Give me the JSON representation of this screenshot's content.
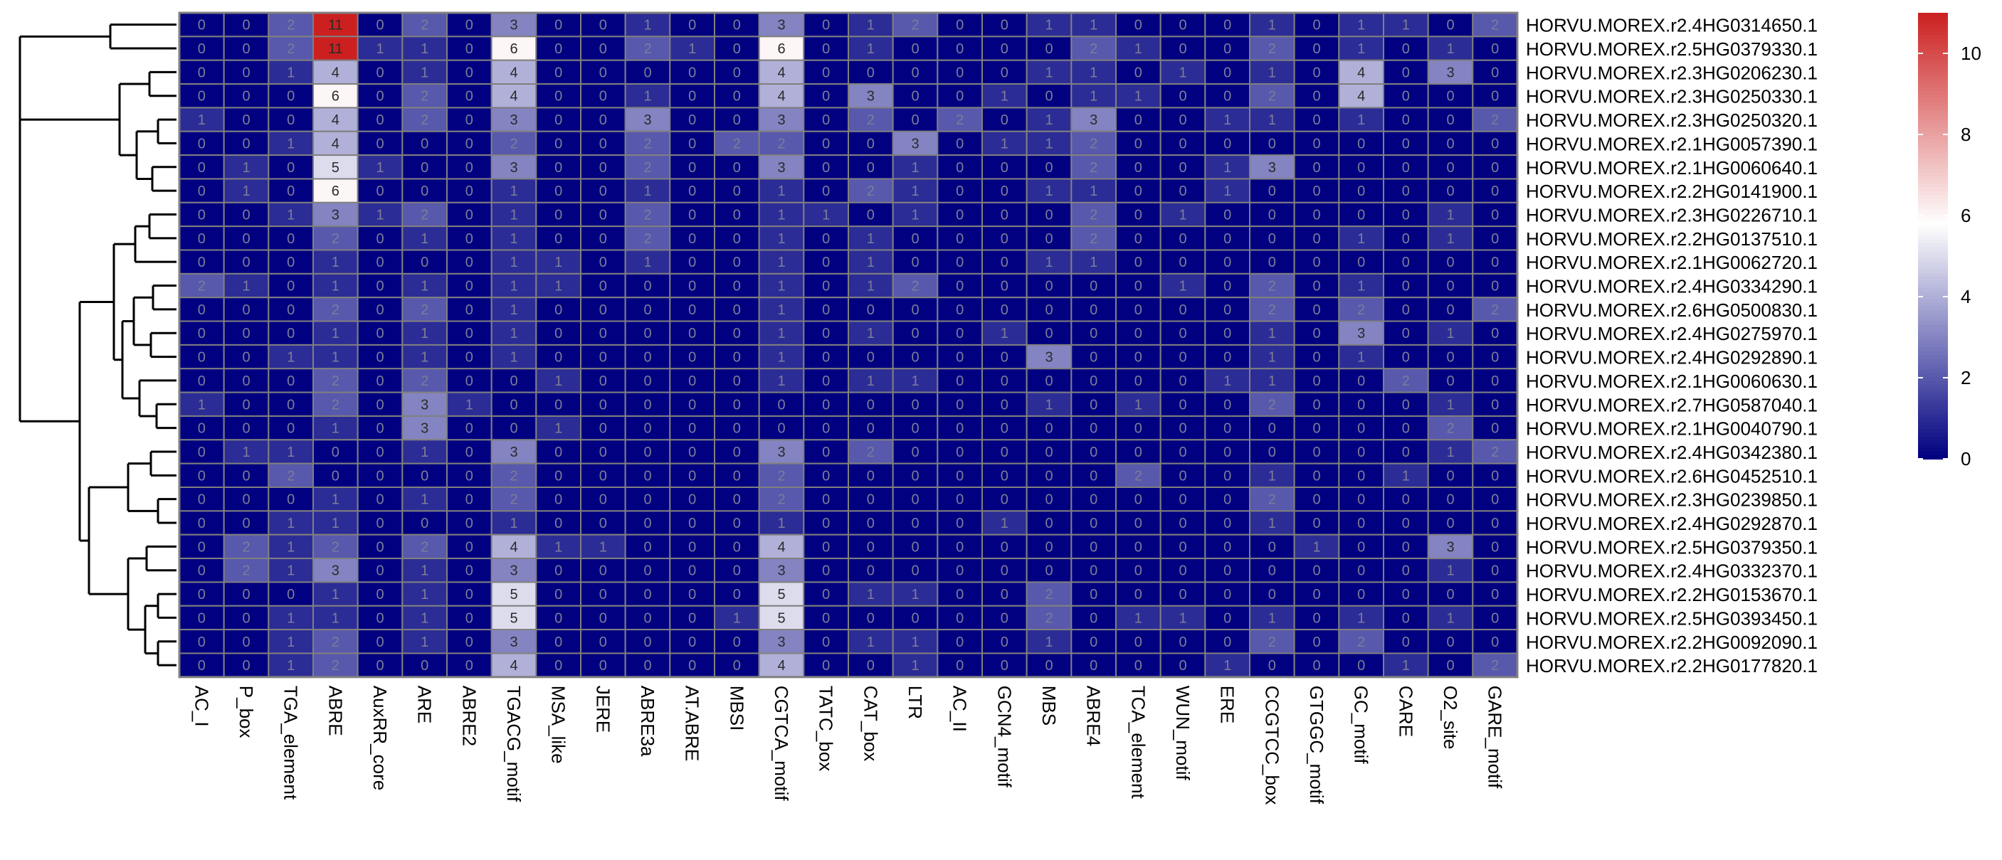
{
  "chart_data": {
    "type": "heatmap",
    "title": "",
    "xlabel": "",
    "ylabel": "",
    "columns": [
      "AC_I",
      "P_box",
      "TGA_element",
      "ABRE",
      "AuxRR_core",
      "ARE",
      "ABRE2",
      "TGACG_motif",
      "MSA_like",
      "JERE",
      "ABRE3a",
      "AT.ABRE",
      "MBSI",
      "CGTCA_motif",
      "TATC_box",
      "CAT_box",
      "LTR",
      "AC_II",
      "GCN4_motif",
      "MBS",
      "ABRE4",
      "TCA_element",
      "WUN_motif",
      "ERE",
      "CCGTCC_box",
      "GTGGC_motif",
      "GC_motif",
      "CARE",
      "O2_site",
      "GARE_motif"
    ],
    "rows": [
      "HORVU.MOREX.r2.4HG0314650.1",
      "HORVU.MOREX.r2.5HG0379330.1",
      "HORVU.MOREX.r2.3HG0206230.1",
      "HORVU.MOREX.r2.3HG0250330.1",
      "HORVU.MOREX.r2.3HG0250320.1",
      "HORVU.MOREX.r2.1HG0057390.1",
      "HORVU.MOREX.r2.1HG0060640.1",
      "HORVU.MOREX.r2.2HG0141900.1",
      "HORVU.MOREX.r2.3HG0226710.1",
      "HORVU.MOREX.r2.2HG0137510.1",
      "HORVU.MOREX.r2.1HG0062720.1",
      "HORVU.MOREX.r2.4HG0334290.1",
      "HORVU.MOREX.r2.6HG0500830.1",
      "HORVU.MOREX.r2.4HG0275970.1",
      "HORVU.MOREX.r2.4HG0292890.1",
      "HORVU.MOREX.r2.1HG0060630.1",
      "HORVU.MOREX.r2.7HG0587040.1",
      "HORVU.MOREX.r2.1HG0040790.1",
      "HORVU.MOREX.r2.4HG0342380.1",
      "HORVU.MOREX.r2.6HG0452510.1",
      "HORVU.MOREX.r2.3HG0239850.1",
      "HORVU.MOREX.r2.4HG0292870.1",
      "HORVU.MOREX.r2.5HG0379350.1",
      "HORVU.MOREX.r2.4HG0332370.1",
      "HORVU.MOREX.r2.2HG0153670.1",
      "HORVU.MOREX.r2.5HG0393450.1",
      "HORVU.MOREX.r2.2HG0092090.1",
      "HORVU.MOREX.r2.2HG0177820.1"
    ],
    "values": [
      [
        0,
        0,
        2,
        11,
        0,
        2,
        0,
        3,
        0,
        0,
        1,
        0,
        0,
        3,
        0,
        1,
        2,
        0,
        0,
        1,
        1,
        0,
        0,
        0,
        1,
        0,
        1,
        1,
        0,
        2
      ],
      [
        0,
        0,
        2,
        11,
        1,
        1,
        0,
        6,
        0,
        0,
        2,
        1,
        0,
        6,
        0,
        1,
        0,
        0,
        0,
        0,
        2,
        1,
        0,
        0,
        2,
        0,
        1,
        0,
        1,
        0
      ],
      [
        0,
        0,
        1,
        4,
        0,
        1,
        0,
        4,
        0,
        0,
        0,
        0,
        0,
        4,
        0,
        0,
        0,
        0,
        0,
        1,
        1,
        0,
        1,
        0,
        1,
        0,
        4,
        0,
        3,
        0
      ],
      [
        0,
        0,
        0,
        6,
        0,
        2,
        0,
        4,
        0,
        0,
        1,
        0,
        0,
        4,
        0,
        3,
        0,
        0,
        1,
        0,
        1,
        1,
        0,
        0,
        2,
        0,
        4,
        0,
        0,
        0
      ],
      [
        1,
        0,
        0,
        4,
        0,
        2,
        0,
        3,
        0,
        0,
        3,
        0,
        0,
        3,
        0,
        2,
        0,
        2,
        0,
        1,
        3,
        0,
        0,
        1,
        1,
        0,
        1,
        0,
        0,
        2
      ],
      [
        0,
        0,
        1,
        4,
        0,
        0,
        0,
        2,
        0,
        0,
        2,
        0,
        2,
        2,
        0,
        0,
        3,
        0,
        1,
        1,
        2,
        0,
        0,
        0,
        0,
        0,
        0,
        0,
        0,
        0
      ],
      [
        0,
        1,
        0,
        5,
        1,
        0,
        0,
        3,
        0,
        0,
        2,
        0,
        0,
        3,
        0,
        0,
        1,
        0,
        0,
        0,
        2,
        0,
        0,
        1,
        3,
        0,
        0,
        0,
        0,
        0
      ],
      [
        0,
        1,
        0,
        6,
        0,
        0,
        0,
        1,
        0,
        0,
        1,
        0,
        0,
        1,
        0,
        2,
        1,
        0,
        0,
        1,
        1,
        0,
        0,
        1,
        0,
        0,
        0,
        0,
        0,
        0
      ],
      [
        0,
        0,
        1,
        3,
        1,
        2,
        0,
        1,
        0,
        0,
        2,
        0,
        0,
        1,
        1,
        0,
        1,
        0,
        0,
        0,
        2,
        0,
        1,
        0,
        0,
        0,
        0,
        0,
        1,
        0
      ],
      [
        0,
        0,
        0,
        2,
        0,
        1,
        0,
        1,
        0,
        0,
        2,
        0,
        0,
        1,
        0,
        1,
        0,
        0,
        0,
        0,
        2,
        0,
        0,
        0,
        0,
        0,
        1,
        0,
        1,
        0
      ],
      [
        0,
        0,
        0,
        1,
        0,
        0,
        0,
        1,
        1,
        0,
        1,
        0,
        0,
        1,
        0,
        1,
        0,
        0,
        0,
        1,
        1,
        0,
        0,
        0,
        0,
        0,
        0,
        0,
        0,
        0
      ],
      [
        2,
        1,
        0,
        1,
        0,
        1,
        0,
        1,
        1,
        0,
        0,
        0,
        0,
        1,
        0,
        1,
        2,
        0,
        0,
        0,
        0,
        0,
        1,
        0,
        2,
        0,
        1,
        0,
        0,
        0
      ],
      [
        0,
        0,
        0,
        2,
        0,
        2,
        0,
        1,
        0,
        0,
        0,
        0,
        0,
        1,
        0,
        0,
        0,
        0,
        0,
        0,
        0,
        0,
        0,
        0,
        2,
        0,
        2,
        0,
        0,
        2
      ],
      [
        0,
        0,
        0,
        1,
        0,
        1,
        0,
        1,
        0,
        0,
        0,
        0,
        0,
        1,
        0,
        1,
        0,
        0,
        1,
        0,
        0,
        0,
        0,
        0,
        1,
        0,
        3,
        0,
        1,
        0
      ],
      [
        0,
        0,
        1,
        1,
        0,
        1,
        0,
        1,
        0,
        0,
        0,
        0,
        0,
        1,
        0,
        0,
        0,
        0,
        0,
        3,
        0,
        0,
        0,
        0,
        1,
        0,
        1,
        0,
        0,
        0
      ],
      [
        0,
        0,
        0,
        2,
        0,
        2,
        0,
        0,
        1,
        0,
        0,
        0,
        0,
        1,
        0,
        1,
        1,
        0,
        0,
        0,
        0,
        0,
        0,
        1,
        1,
        0,
        0,
        2,
        0,
        0
      ],
      [
        1,
        0,
        0,
        2,
        0,
        3,
        1,
        0,
        0,
        0,
        0,
        0,
        0,
        0,
        0,
        0,
        0,
        0,
        0,
        1,
        0,
        1,
        0,
        0,
        2,
        0,
        0,
        0,
        1,
        0
      ],
      [
        0,
        0,
        0,
        1,
        0,
        3,
        0,
        0,
        1,
        0,
        0,
        0,
        0,
        0,
        0,
        0,
        0,
        0,
        0,
        0,
        0,
        0,
        0,
        0,
        0,
        0,
        0,
        0,
        2,
        0
      ],
      [
        0,
        1,
        1,
        0,
        0,
        1,
        0,
        3,
        0,
        0,
        0,
        0,
        0,
        3,
        0,
        2,
        0,
        0,
        0,
        0,
        0,
        0,
        0,
        0,
        0,
        0,
        0,
        0,
        1,
        2
      ],
      [
        0,
        0,
        2,
        0,
        0,
        0,
        0,
        2,
        0,
        0,
        0,
        0,
        0,
        2,
        0,
        0,
        0,
        0,
        0,
        0,
        0,
        2,
        0,
        0,
        1,
        0,
        0,
        1,
        0,
        0
      ],
      [
        0,
        0,
        0,
        1,
        0,
        1,
        0,
        2,
        0,
        0,
        0,
        0,
        0,
        2,
        0,
        0,
        0,
        0,
        0,
        0,
        0,
        0,
        0,
        0,
        2,
        0,
        0,
        0,
        0,
        0
      ],
      [
        0,
        0,
        1,
        1,
        0,
        0,
        0,
        1,
        0,
        0,
        0,
        0,
        0,
        1,
        0,
        0,
        0,
        0,
        1,
        0,
        0,
        0,
        0,
        0,
        1,
        0,
        0,
        0,
        0,
        0
      ],
      [
        0,
        2,
        1,
        2,
        0,
        2,
        0,
        4,
        1,
        1,
        0,
        0,
        0,
        4,
        0,
        0,
        0,
        0,
        0,
        0,
        0,
        0,
        0,
        0,
        0,
        1,
        0,
        0,
        3,
        0
      ],
      [
        0,
        2,
        1,
        3,
        0,
        1,
        0,
        3,
        0,
        0,
        0,
        0,
        0,
        3,
        0,
        0,
        0,
        0,
        0,
        0,
        0,
        0,
        0,
        0,
        0,
        0,
        0,
        0,
        1,
        0
      ],
      [
        0,
        0,
        0,
        1,
        0,
        1,
        0,
        5,
        0,
        0,
        0,
        0,
        0,
        5,
        0,
        1,
        1,
        0,
        0,
        2,
        0,
        0,
        0,
        0,
        0,
        0,
        0,
        0,
        0,
        0
      ],
      [
        0,
        0,
        1,
        1,
        0,
        1,
        0,
        5,
        0,
        0,
        0,
        0,
        1,
        5,
        0,
        0,
        0,
        0,
        0,
        2,
        0,
        1,
        1,
        0,
        1,
        0,
        1,
        0,
        1,
        0
      ],
      [
        0,
        0,
        1,
        2,
        0,
        1,
        0,
        3,
        0,
        0,
        0,
        0,
        0,
        3,
        0,
        1,
        1,
        0,
        0,
        1,
        0,
        0,
        0,
        0,
        2,
        0,
        2,
        0,
        0,
        0
      ],
      [
        0,
        0,
        1,
        2,
        0,
        0,
        0,
        4,
        0,
        0,
        0,
        0,
        0,
        4,
        0,
        0,
        1,
        0,
        0,
        0,
        0,
        0,
        0,
        1,
        0,
        0,
        0,
        1,
        0,
        2
      ]
    ],
    "colorbar": {
      "ticks": [
        0,
        2,
        4,
        6,
        8,
        10
      ],
      "range": [
        0,
        11
      ],
      "colors": {
        "low": "#000080",
        "mid": "#FFFFFF",
        "high": "#CC2020",
        "mid_value": 5.8
      }
    },
    "dendrogram": "rows",
    "grid_color": "#808080"
  }
}
